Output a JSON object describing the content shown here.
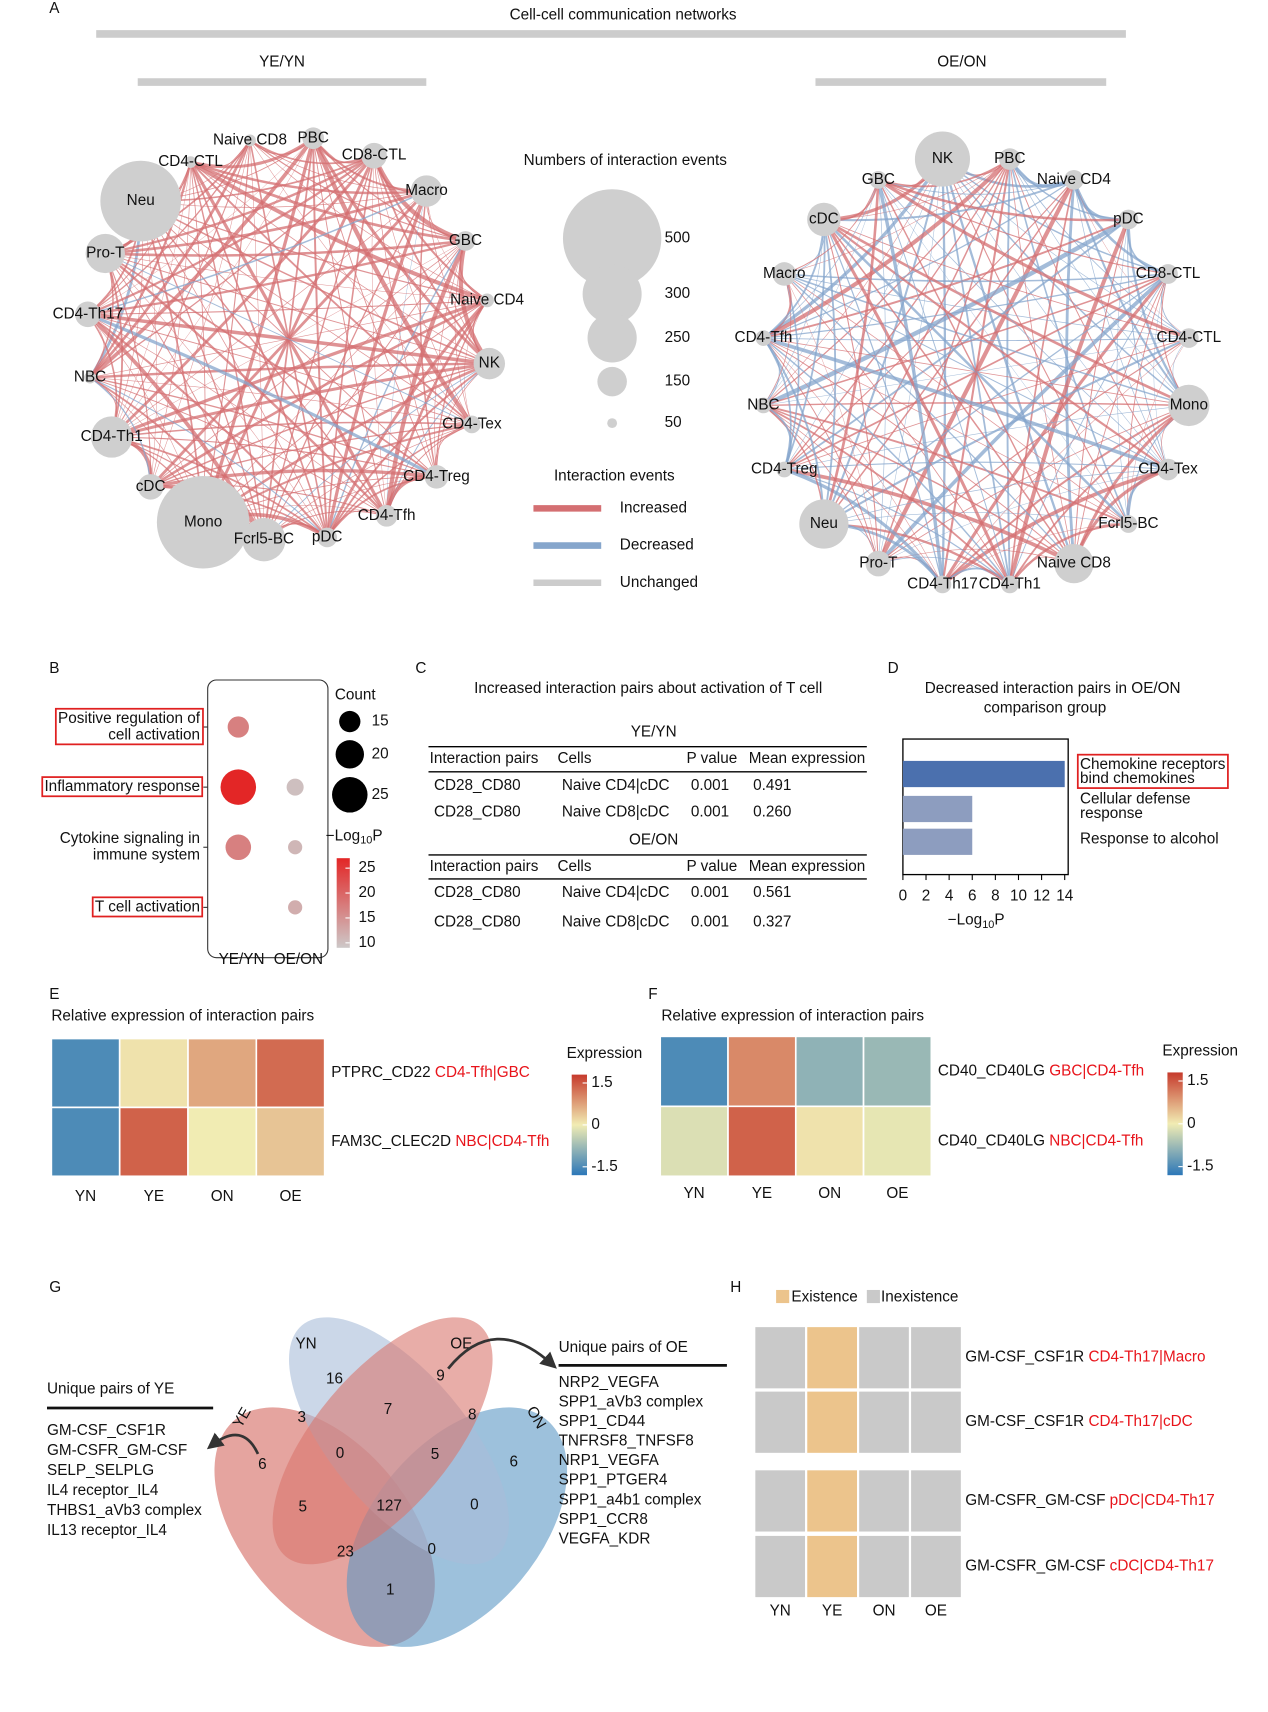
{
  "panel_a": {
    "letter": "A",
    "title": "Cell-cell communication networks",
    "networks": [
      {
        "title": "YE/YN",
        "nodes": [
          {
            "label": "Neu",
            "events": 410
          },
          {
            "label": "CD4-CTL",
            "events": 60
          },
          {
            "label": "Naive CD8",
            "events": 60
          },
          {
            "label": "PBC",
            "events": 110
          },
          {
            "label": "CD8-CTL",
            "events": 130
          },
          {
            "label": "Macro",
            "events": 160
          },
          {
            "label": "GBC",
            "events": 100
          },
          {
            "label": "Naive CD4",
            "events": 70
          },
          {
            "label": "NK",
            "events": 160
          },
          {
            "label": "CD4-Tex",
            "events": 90
          },
          {
            "label": "CD4-Treg",
            "events": 120
          },
          {
            "label": "CD4-Tfh",
            "events": 110
          },
          {
            "label": "pDC",
            "events": 100
          },
          {
            "label": "Fcrl5-BC",
            "events": 220
          },
          {
            "label": "Mono",
            "events": 470
          },
          {
            "label": "cDC",
            "events": 130
          },
          {
            "label": "CD4-Th1",
            "events": 210
          },
          {
            "label": "NBC",
            "events": 60
          },
          {
            "label": "CD4-Th17",
            "events": 130
          },
          {
            "label": "Pro-T",
            "events": 200
          }
        ]
      },
      {
        "title": "OE/ON",
        "nodes": [
          {
            "label": "NK",
            "events": 280
          },
          {
            "label": "PBC",
            "events": 110
          },
          {
            "label": "Naive CD4",
            "events": 100
          },
          {
            "label": "pDC",
            "events": 100
          },
          {
            "label": "CD8-CTL",
            "events": 100
          },
          {
            "label": "CD4-CTL",
            "events": 100
          },
          {
            "label": "Mono",
            "events": 210
          },
          {
            "label": "CD4-Tex",
            "events": 110
          },
          {
            "label": "Fcrl5-BC",
            "events": 90
          },
          {
            "label": "Naive CD8",
            "events": 200
          },
          {
            "label": "CD4-Th1",
            "events": 90
          },
          {
            "label": "CD4-Th17",
            "events": 90
          },
          {
            "label": "Pro-T",
            "events": 130
          },
          {
            "label": "Neu",
            "events": 250
          },
          {
            "label": "CD4-Treg",
            "events": 80
          },
          {
            "label": "NBC",
            "events": 80
          },
          {
            "label": "CD4-Tfh",
            "events": 80
          },
          {
            "label": "Macro",
            "events": 120
          },
          {
            "label": "cDC",
            "events": 170
          },
          {
            "label": "GBC",
            "events": 90
          }
        ]
      }
    ],
    "size_legend": {
      "title": "Numbers of interaction events",
      "values": [
        500,
        300,
        250,
        150,
        50
      ]
    },
    "color_legend": {
      "title": "Interaction events",
      "items": [
        {
          "label": "Increased",
          "color": "#d46f72"
        },
        {
          "label": "Decreased",
          "color": "#86a6cc"
        },
        {
          "label": "Unchanged",
          "color": "#cccccc"
        }
      ]
    }
  },
  "panel_b": {
    "letter": "B",
    "terms": [
      {
        "lines": [
          "Positive regulation of",
          "cell activation"
        ],
        "highlight": true
      },
      {
        "lines": [
          "Inflammatory response"
        ],
        "highlight": true
      },
      {
        "lines": [
          "Cytokine signaling in",
          "immune system"
        ],
        "highlight": false
      },
      {
        "lines": [
          "T cell activation"
        ],
        "highlight": true
      }
    ],
    "groups": [
      {
        "name": "YE/YN",
        "count": [
          15,
          25,
          18,
          null
        ],
        "log10p": [
          17,
          27,
          17,
          null
        ]
      },
      {
        "name": "OE/ON",
        "count": [
          null,
          12,
          10,
          10
        ],
        "log10p": [
          null,
          10,
          11,
          12
        ]
      }
    ],
    "count_legend": {
      "title": "Count",
      "values": [
        15,
        20,
        25
      ]
    },
    "color_legend": {
      "title": {
        "pre": "−Log",
        "sub": "10",
        "post": "P"
      },
      "ticks": [
        25,
        20,
        15,
        10
      ],
      "clim": [
        9,
        27
      ],
      "colors": [
        "#cdc8c8",
        "#e32626"
      ]
    }
  },
  "panel_c": {
    "letter": "C",
    "title": "Increased interaction pairs about activation of T cell",
    "header": [
      "Interaction pairs",
      "Cells",
      "P value",
      "Mean expression"
    ],
    "sections": [
      {
        "title": "YE/YN",
        "rows": [
          [
            "CD28_CD80",
            "Naive CD4|cDC",
            "0.001",
            "0.491"
          ],
          [
            "CD28_CD80",
            "Naive CD8|cDC",
            "0.001",
            "0.260"
          ]
        ]
      },
      {
        "title": "OE/ON",
        "rows": [
          [
            "CD28_CD80",
            "Naive CD4|cDC",
            "0.001",
            "0.561"
          ],
          [
            "CD28_CD80",
            "Naive CD8|cDC",
            "0.001",
            "0.327"
          ]
        ]
      }
    ]
  },
  "panel_d": {
    "letter": "D",
    "title_lines": [
      "Decreased interaction pairs in OE/ON",
      "comparison group"
    ],
    "bars": [
      {
        "lines": [
          "Chemokine receptors",
          "bind chemokines"
        ],
        "value": 14,
        "color": "#4b70ae",
        "highlight": true
      },
      {
        "lines": [
          "Cellular defense",
          "response"
        ],
        "value": 6,
        "color": "#8d9dbf",
        "highlight": false
      },
      {
        "lines": [
          "Response to alcohol"
        ],
        "value": 6,
        "color": "#8d9dbf",
        "highlight": false
      }
    ],
    "xlim": [
      0,
      14.3
    ],
    "xticks": [
      0,
      2,
      4,
      6,
      8,
      10,
      12,
      14
    ],
    "xlabel": {
      "pre": "−Log",
      "sub": "10",
      "post": "P"
    }
  },
  "panel_e": {
    "letter": "E",
    "title": "Relative expression of interaction pairs",
    "columns": [
      "YN",
      "YE",
      "ON",
      "OE"
    ],
    "rows": [
      {
        "pair": "PTPRC_CD22",
        "cells": "CD4-Tfh|GBC",
        "values": [
          -1.5,
          0.1,
          0.7,
          1.3
        ]
      },
      {
        "pair": "FAM3C_CLEC2D",
        "cells": "NBC|CD4-Tfh",
        "values": [
          -1.5,
          1.4,
          0.0,
          0.4
        ]
      }
    ],
    "legend_title": "Expression",
    "ticks": [
      1.5,
      0,
      -1.5
    ],
    "clim": [
      -1.8,
      1.8
    ],
    "colors": [
      "#2c77b8",
      "#f1ecb3",
      "#c63a2c"
    ]
  },
  "panel_f": {
    "letter": "F",
    "title": "Relative expression of interaction pairs",
    "columns": [
      "YN",
      "YE",
      "ON",
      "OE"
    ],
    "rows": [
      {
        "pair": "CD40_CD40LG",
        "cells": "GBC|CD4-Tfh",
        "values": [
          -1.5,
          1.0,
          -0.9,
          -0.8
        ]
      },
      {
        "pair": "CD40_CD40LG",
        "cells": "NBC|CD4-Tfh",
        "values": [
          -0.2,
          1.4,
          0.1,
          -0.1
        ]
      }
    ],
    "legend_title": "Expression",
    "ticks": [
      1.5,
      0,
      -1.5
    ],
    "clim": [
      -1.8,
      1.8
    ],
    "colors": [
      "#2c77b8",
      "#f1ecb3",
      "#c63a2c"
    ]
  },
  "panel_g": {
    "letter": "G",
    "sets": [
      {
        "label": "YE",
        "color": "#d4675f"
      },
      {
        "label": "ON",
        "color": "#5b98c4"
      },
      {
        "label": "YN",
        "color": "#a8bcd9"
      },
      {
        "label": "OE",
        "color": "#d9776e"
      }
    ],
    "regions": [
      16,
      9,
      7,
      3,
      8,
      6,
      0,
      5,
      6,
      127,
      5,
      0,
      23,
      0,
      1
    ],
    "ye_list": {
      "title": "Unique pairs of YE",
      "items": [
        "GM-CSF_CSF1R",
        "GM-CSFR_GM-CSF",
        "SELP_SELPLG",
        "IL4 receptor_IL4",
        "THBS1_aVb3 complex",
        "IL13 receptor_IL4"
      ]
    },
    "oe_list": {
      "title": "Unique pairs of OE",
      "items": [
        "NRP2_VEGFA",
        "SPP1_aVb3 complex",
        "SPP1_CD44",
        "TNFRSF8_TNFSF8",
        "NRP1_VEGFA",
        "SPP1_PTGER4",
        "SPP1_a4b1 complex",
        "SPP1_CCR8",
        "VEGFA_KDR"
      ]
    }
  },
  "panel_h": {
    "letter": "H",
    "legend": [
      {
        "label": "Existence",
        "color": "#ecc48c"
      },
      {
        "label": "Inexistence",
        "color": "#c9c9c9"
      }
    ],
    "columns": [
      "YN",
      "YE",
      "ON",
      "OE"
    ],
    "rows": [
      {
        "pair": "GM-CSF_CSF1R",
        "cells": "CD4-Th17|Macro",
        "exists": [
          false,
          true,
          false,
          false
        ]
      },
      {
        "pair": "GM-CSF_CSF1R",
        "cells": "CD4-Th17|cDC",
        "exists": [
          false,
          true,
          false,
          false
        ]
      },
      {
        "pair": "GM-CSFR_GM-CSF",
        "cells": "pDC|CD4-Th17",
        "exists": [
          false,
          true,
          false,
          false
        ]
      },
      {
        "pair": "GM-CSFR_GM-CSF",
        "cells": "cDC|CD4-Th17",
        "exists": [
          false,
          true,
          false,
          false
        ]
      }
    ]
  }
}
